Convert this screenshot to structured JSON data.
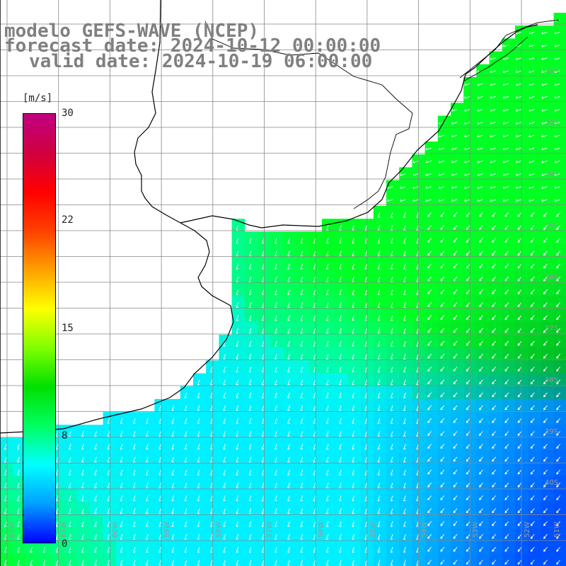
{
  "titles": {
    "line1": "modelo GEFS-WAVE (NCEP)",
    "line2": "forecast date: 2024-10-12 00:00:00",
    "line3": "valid date: 2024-10-19 06:00:00"
  },
  "colorbar": {
    "units": "[m/s]",
    "ticks": [
      {
        "label": "30",
        "value": 30
      },
      {
        "label": "22",
        "value": 22
      },
      {
        "label": "15",
        "value": 15
      },
      {
        "label": "8",
        "value": 8
      },
      {
        "label": "0",
        "value": 0
      }
    ],
    "stops": [
      "#0000ff",
      "#00a0ff",
      "#00ffff",
      "#00ff60",
      "#00e000",
      "#80ff00",
      "#ffff00",
      "#ffa000",
      "#ff4000",
      "#ff0000",
      "#d00040",
      "#c00080"
    ]
  },
  "lat_labels": [
    "32S",
    "33S",
    "34S",
    "35S",
    "36S",
    "37S",
    "38S",
    "39S",
    "40S"
  ],
  "lon_labels": [
    "62W",
    "61W",
    "60W",
    "59W",
    "58W",
    "57W",
    "56W",
    "55W",
    "54W",
    "53W",
    "52W",
    "51W"
  ],
  "colors": {
    "land": "#ffffff",
    "coast": "#000000",
    "grid": "#888888",
    "arrow": "#ffffff"
  }
}
